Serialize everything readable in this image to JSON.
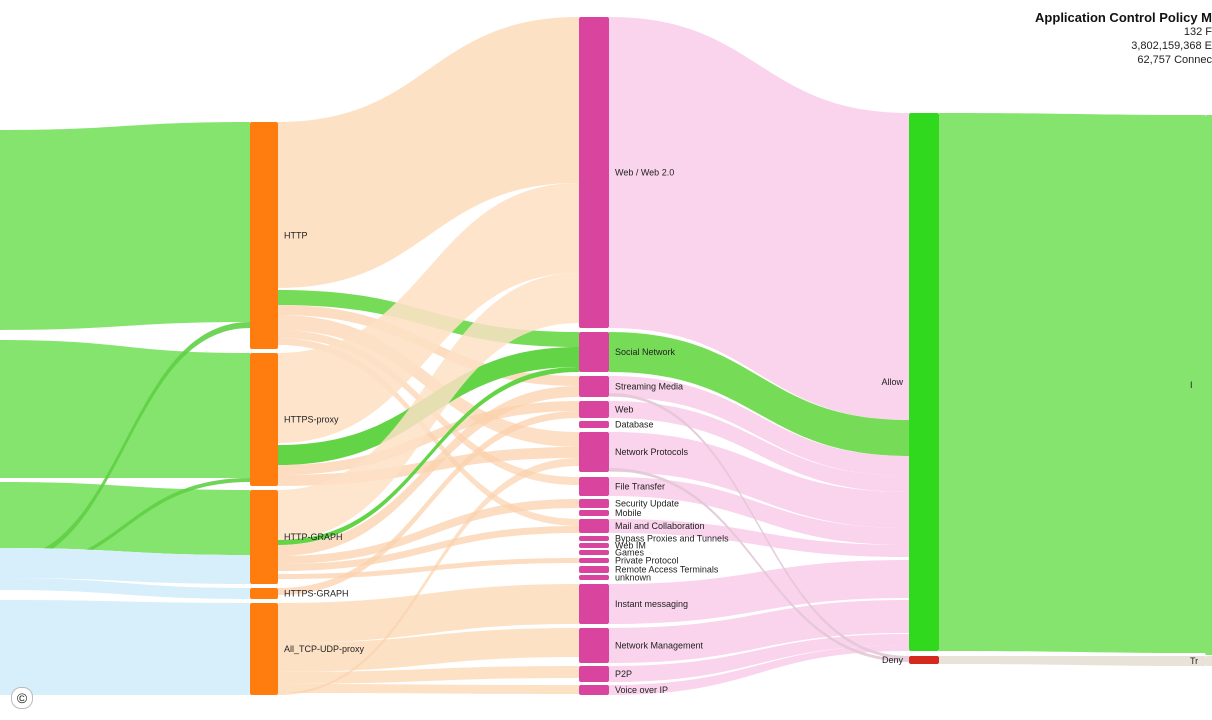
{
  "header": {
    "title": "Application Control Policy M",
    "line1": "132 F",
    "line2": "3,802,159,368 E",
    "line3": "62,757 Connec"
  },
  "copyright_symbol": "©",
  "chart_data": {
    "type": "sankey",
    "columns": [
      {
        "nodes": [
          {
            "name": "",
            "color": "#85e46e",
            "start": 130,
            "end": 600
          },
          {
            "name": "",
            "color": "#d7eefb",
            "start": 548,
            "end": 695
          }
        ]
      },
      {
        "nodes": [
          {
            "name": "HTTP",
            "color": "#ff7d0f",
            "start": 122,
            "end": 349
          },
          {
            "name": "HTTPS-proxy",
            "color": "#ff7d0f",
            "start": 353,
            "end": 486
          },
          {
            "name": "HTTP-GRAPH",
            "color": "#ff7d0f",
            "start": 490,
            "end": 584
          },
          {
            "name": "HTTPS-GRAPH",
            "color": "#ff7d0f",
            "start": 588,
            "end": 599
          },
          {
            "name": "All_TCP-UDP-proxy",
            "color": "#ff7d0f",
            "start": 603,
            "end": 695
          }
        ]
      },
      {
        "nodes": [
          {
            "name": "Web / Web 2.0",
            "color": "#d9459e",
            "start": 17,
            "end": 328
          },
          {
            "name": "Social Network",
            "color": "#d9459e",
            "start": 332,
            "end": 372
          },
          {
            "name": "Streaming Media",
            "color": "#d9459e",
            "start": 376,
            "end": 397
          },
          {
            "name": "Web",
            "color": "#d9459e",
            "start": 401,
            "end": 418
          },
          {
            "name": "Database",
            "color": "#d9459e",
            "start": 421,
            "end": 428
          },
          {
            "name": "Network Protocols",
            "color": "#d9459e",
            "start": 432,
            "end": 472
          },
          {
            "name": "File Transfer",
            "color": "#d9459e",
            "start": 477,
            "end": 496
          },
          {
            "name": "Security Update",
            "color": "#d9459e",
            "start": 499,
            "end": 508
          },
          {
            "name": "Mobile",
            "color": "#d9459e",
            "start": 510,
            "end": 516
          },
          {
            "name": "Mail and Collaboration",
            "color": "#d9459e",
            "start": 519,
            "end": 533
          },
          {
            "name": "Bypass Proxies and Tunnels",
            "color": "#d9459e",
            "start": 536,
            "end": 541
          },
          {
            "name": "Web IM",
            "color": "#d9459e",
            "start": 543,
            "end": 548
          },
          {
            "name": "Games",
            "color": "#d9459e",
            "start": 550,
            "end": 555
          },
          {
            "name": "Private Protocol",
            "color": "#d9459e",
            "start": 558,
            "end": 563
          },
          {
            "name": "Remote Access Terminals",
            "color": "#d9459e",
            "start": 566,
            "end": 573
          },
          {
            "name": "unknown",
            "color": "#d9459e",
            "start": 575,
            "end": 580
          },
          {
            "name": "Instant messaging",
            "color": "#d9459e",
            "start": 584,
            "end": 624
          },
          {
            "name": "Network Management",
            "color": "#d9459e",
            "start": 628,
            "end": 663
          },
          {
            "name": "P2P",
            "color": "#d9459e",
            "start": 666,
            "end": 682
          },
          {
            "name": "Voice over IP",
            "color": "#d9459e",
            "start": 685,
            "end": 695
          }
        ]
      },
      {
        "nodes": [
          {
            "name": "Allow",
            "color": "#30d81e",
            "start": 113,
            "end": 651
          },
          {
            "name": "Deny",
            "color": "#d3291f",
            "start": 656,
            "end": 664
          }
        ]
      },
      {
        "nodes": [
          {
            "name": "I",
            "color": "#85e46e",
            "start": 115,
            "end": 655
          },
          {
            "name": "Tr",
            "color": "#e8e2d8",
            "start": 656,
            "end": 666
          }
        ]
      }
    ],
    "flows": [
      {
        "from": [
          0,
          0
        ],
        "to": [
          1,
          0
        ],
        "s0": 130,
        "s1": 330,
        "t0": 122,
        "t1": 322,
        "color": "#85e46e",
        "opacity": 1
      },
      {
        "from": [
          0,
          0
        ],
        "to": [
          1,
          1
        ],
        "s0": 340,
        "s1": 478,
        "t0": 353,
        "t1": 478,
        "color": "#85e46e",
        "opacity": 1
      },
      {
        "from": [
          0,
          0
        ],
        "to": [
          1,
          2
        ],
        "s0": 482,
        "s1": 548,
        "t0": 490,
        "t1": 555,
        "color": "#85e46e",
        "opacity": 1
      },
      {
        "from": [
          0,
          0
        ],
        "to": [
          1,
          0
        ],
        "s0": 560,
        "s1": 566,
        "t0": 322,
        "t1": 328,
        "color": "#5fcf45",
        "opacity": 0.9
      },
      {
        "from": [
          0,
          0
        ],
        "to": [
          1,
          1
        ],
        "s0": 570,
        "s1": 574,
        "t0": 478,
        "t1": 482,
        "color": "#5fcf45",
        "opacity": 0.9
      },
      {
        "from": [
          0,
          0
        ],
        "to": [
          1,
          4
        ],
        "s0": 628,
        "s1": 634,
        "t0": 660,
        "t1": 665,
        "color": "#5fcf45",
        "opacity": 0.9
      },
      {
        "from": [
          0,
          1
        ],
        "to": [
          1,
          2
        ],
        "s0": 548,
        "s1": 578,
        "t0": 555,
        "t1": 584,
        "color": "#d7eefb",
        "opacity": 1
      },
      {
        "from": [
          0,
          1
        ],
        "to": [
          1,
          3
        ],
        "s0": 578,
        "s1": 590,
        "t0": 588,
        "t1": 599,
        "color": "#d7eefb",
        "opacity": 1
      },
      {
        "from": [
          0,
          1
        ],
        "to": [
          1,
          4
        ],
        "s0": 600,
        "s1": 695,
        "t0": 603,
        "t1": 695,
        "color": "#d7eefb",
        "opacity": 1
      },
      {
        "from": [
          1,
          0
        ],
        "to": [
          2,
          0
        ],
        "s0": 122,
        "s1": 288,
        "t0": 17,
        "t1": 183,
        "color": "#fde1c5",
        "opacity": 1
      },
      {
        "from": [
          1,
          0
        ],
        "to": [
          2,
          1
        ],
        "s0": 290,
        "s1": 305,
        "t0": 332,
        "t1": 347,
        "color": "#76dc58",
        "opacity": 1
      },
      {
        "from": [
          1,
          0
        ],
        "to": [
          2,
          2
        ],
        "s0": 305,
        "s1": 315,
        "t0": 376,
        "t1": 386,
        "color": "#fbd2ac",
        "opacity": 0.75
      },
      {
        "from": [
          1,
          0
        ],
        "to": [
          2,
          5
        ],
        "s0": 315,
        "s1": 330,
        "t0": 432,
        "t1": 447,
        "color": "#fbd2ac",
        "opacity": 0.7
      },
      {
        "from": [
          1,
          0
        ],
        "to": [
          2,
          6
        ],
        "s0": 330,
        "s1": 338,
        "t0": 477,
        "t1": 485,
        "color": "#fbd2ac",
        "opacity": 0.7
      },
      {
        "from": [
          1,
          0
        ],
        "to": [
          2,
          9
        ],
        "s0": 338,
        "s1": 345,
        "t0": 519,
        "t1": 526,
        "color": "#fbd2ac",
        "opacity": 0.7
      },
      {
        "from": [
          1,
          1
        ],
        "to": [
          2,
          0
        ],
        "s0": 353,
        "s1": 443,
        "t0": 183,
        "t1": 273,
        "color": "#fde1c5",
        "opacity": 0.9
      },
      {
        "from": [
          1,
          1
        ],
        "to": [
          2,
          1
        ],
        "s0": 445,
        "s1": 465,
        "t0": 347,
        "t1": 367,
        "color": "#62d445",
        "opacity": 1
      },
      {
        "from": [
          1,
          1
        ],
        "to": [
          2,
          3
        ],
        "s0": 465,
        "s1": 475,
        "t0": 401,
        "t1": 411,
        "color": "#fbd2ac",
        "opacity": 0.75
      },
      {
        "from": [
          1,
          1
        ],
        "to": [
          2,
          5
        ],
        "s0": 475,
        "s1": 486,
        "t0": 447,
        "t1": 458,
        "color": "#fbd2ac",
        "opacity": 0.75
      },
      {
        "from": [
          1,
          2
        ],
        "to": [
          2,
          0
        ],
        "s0": 490,
        "s1": 540,
        "t0": 273,
        "t1": 323,
        "color": "#fde1c5",
        "opacity": 0.85
      },
      {
        "from": [
          1,
          2
        ],
        "to": [
          2,
          1
        ],
        "s0": 540,
        "s1": 545,
        "t0": 367,
        "t1": 372,
        "color": "#62d445",
        "opacity": 1
      },
      {
        "from": [
          1,
          2
        ],
        "to": [
          2,
          2
        ],
        "s0": 545,
        "s1": 556,
        "t0": 386,
        "t1": 397,
        "color": "#fbd2ac",
        "opacity": 0.75
      },
      {
        "from": [
          1,
          2
        ],
        "to": [
          2,
          7
        ],
        "s0": 556,
        "s1": 564,
        "t0": 499,
        "t1": 508,
        "color": "#fbd2ac",
        "opacity": 0.75
      },
      {
        "from": [
          1,
          2
        ],
        "to": [
          2,
          9
        ],
        "s0": 564,
        "s1": 571,
        "t0": 526,
        "t1": 533,
        "color": "#fbd2ac",
        "opacity": 0.75
      },
      {
        "from": [
          1,
          2
        ],
        "to": [
          2,
          13
        ],
        "s0": 574,
        "s1": 579,
        "t0": 558,
        "t1": 563,
        "color": "#fbd2ac",
        "opacity": 0.75
      },
      {
        "from": [
          1,
          3
        ],
        "to": [
          2,
          3
        ],
        "s0": 588,
        "s1": 595,
        "t0": 411,
        "t1": 418,
        "color": "#fbd2ac",
        "opacity": 0.75
      },
      {
        "from": [
          1,
          4
        ],
        "to": [
          2,
          16
        ],
        "s0": 603,
        "s1": 643,
        "t0": 584,
        "t1": 624,
        "color": "#fde1c5",
        "opacity": 1
      },
      {
        "from": [
          1,
          4
        ],
        "to": [
          2,
          17
        ],
        "s0": 643,
        "s1": 672,
        "t0": 628,
        "t1": 657,
        "color": "#fde1c5",
        "opacity": 1
      },
      {
        "from": [
          1,
          4
        ],
        "to": [
          2,
          18
        ],
        "s0": 672,
        "s1": 684,
        "t0": 666,
        "t1": 678,
        "color": "#fde1c5",
        "opacity": 1
      },
      {
        "from": [
          1,
          4
        ],
        "to": [
          2,
          19
        ],
        "s0": 684,
        "s1": 693,
        "t0": 685,
        "t1": 694,
        "color": "#fde1c5",
        "opacity": 1
      },
      {
        "from": [
          1,
          4
        ],
        "to": [
          2,
          5
        ],
        "s0": 693,
        "s1": 695,
        "t0": 458,
        "t1": 466,
        "color": "#fbd2ac",
        "opacity": 0.7
      },
      {
        "from": [
          2,
          0
        ],
        "to": [
          3,
          0
        ],
        "s0": 17,
        "s1": 328,
        "t0": 113,
        "t1": 420,
        "color": "#fad3ec",
        "opacity": 1
      },
      {
        "from": [
          2,
          1
        ],
        "to": [
          3,
          0
        ],
        "s0": 332,
        "s1": 372,
        "t0": 420,
        "t1": 456,
        "color": "#76dc58",
        "opacity": 1
      },
      {
        "from": [
          2,
          2
        ],
        "to": [
          3,
          0
        ],
        "s0": 376,
        "s1": 397,
        "t0": 456,
        "t1": 476,
        "color": "#fad3ec",
        "opacity": 1
      },
      {
        "from": [
          2,
          3
        ],
        "to": [
          3,
          0
        ],
        "s0": 401,
        "s1": 418,
        "t0": 476,
        "t1": 492,
        "color": "#fad3ec",
        "opacity": 1
      },
      {
        "from": [
          2,
          5
        ],
        "to": [
          3,
          0
        ],
        "s0": 432,
        "s1": 472,
        "t0": 492,
        "t1": 528,
        "color": "#fad3ec",
        "opacity": 1
      },
      {
        "from": [
          2,
          6
        ],
        "to": [
          3,
          0
        ],
        "s0": 477,
        "s1": 496,
        "t0": 528,
        "t1": 545,
        "color": "#fad3ec",
        "opacity": 1
      },
      {
        "from": [
          2,
          9
        ],
        "to": [
          3,
          0
        ],
        "s0": 519,
        "s1": 533,
        "t0": 545,
        "t1": 557,
        "color": "#fad3ec",
        "opacity": 1
      },
      {
        "from": [
          2,
          16
        ],
        "to": [
          3,
          0
        ],
        "s0": 584,
        "s1": 624,
        "t0": 560,
        "t1": 598,
        "color": "#fad3ec",
        "opacity": 1
      },
      {
        "from": [
          2,
          17
        ],
        "to": [
          3,
          0
        ],
        "s0": 628,
        "s1": 663,
        "t0": 600,
        "t1": 633,
        "color": "#fad3ec",
        "opacity": 1
      },
      {
        "from": [
          2,
          18
        ],
        "to": [
          3,
          0
        ],
        "s0": 666,
        "s1": 682,
        "t0": 634,
        "t1": 645,
        "color": "#fad3ec",
        "opacity": 1
      },
      {
        "from": [
          2,
          19
        ],
        "to": [
          3,
          0
        ],
        "s0": 685,
        "s1": 695,
        "t0": 645,
        "t1": 651,
        "color": "#fad3ec",
        "opacity": 1
      },
      {
        "from": [
          2,
          2
        ],
        "to": [
          3,
          1
        ],
        "s0": 393,
        "s1": 396,
        "t0": 656,
        "t1": 659,
        "color": "#e2c8d6",
        "opacity": 0.9
      },
      {
        "from": [
          2,
          5
        ],
        "to": [
          3,
          1
        ],
        "s0": 468,
        "s1": 471,
        "t0": 659,
        "t1": 662,
        "color": "#e2c8d6",
        "opacity": 0.9
      },
      {
        "from": [
          3,
          0
        ],
        "to": [
          4,
          0
        ],
        "s0": 113,
        "s1": 651,
        "t0": 115,
        "t1": 653,
        "color": "#85e46e",
        "opacity": 1
      },
      {
        "from": [
          3,
          1
        ],
        "to": [
          4,
          1
        ],
        "s0": 656,
        "s1": 664,
        "t0": 656,
        "t1": 666,
        "color": "#e8e2d8",
        "opacity": 1
      }
    ]
  }
}
